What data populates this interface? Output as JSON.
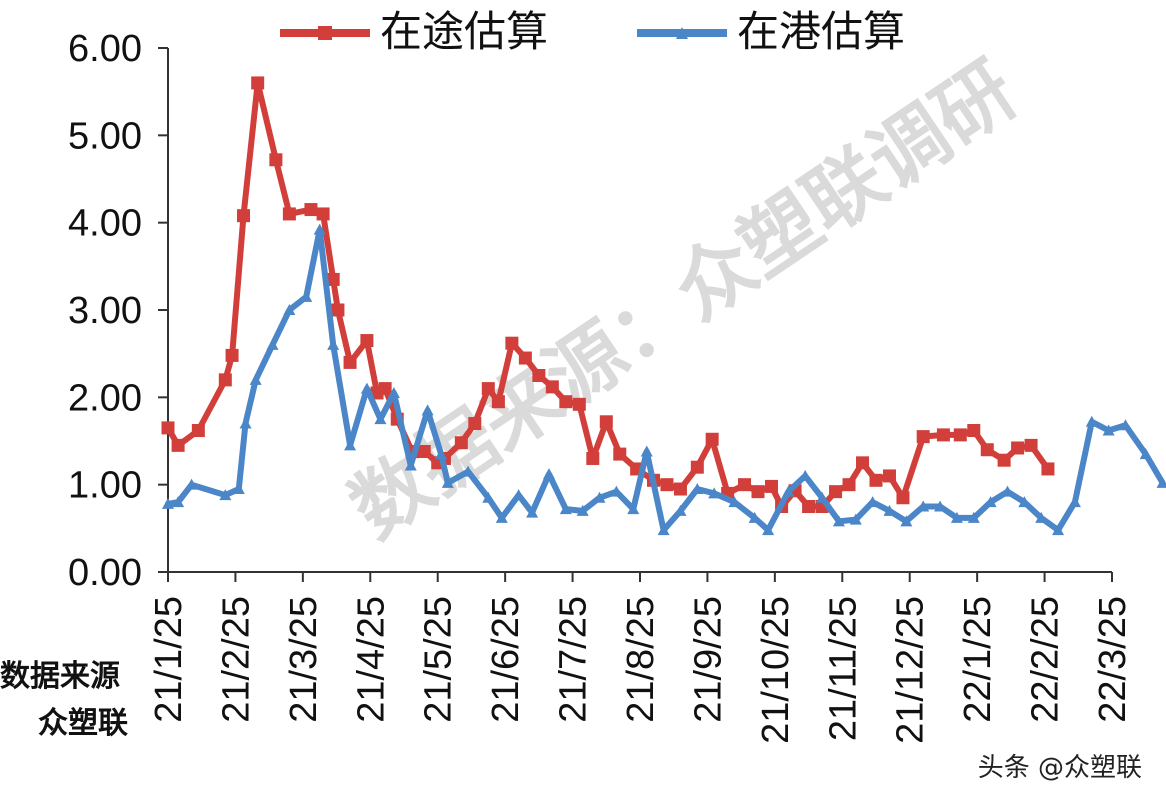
{
  "chart_data": {
    "type": "line",
    "title": "",
    "xlabel": "",
    "ylabel": "",
    "ylim": [
      0,
      6
    ],
    "yticks": [
      "0.00",
      "1.00",
      "2.00",
      "3.00",
      "4.00",
      "5.00",
      "6.00"
    ],
    "x_tick_labels": [
      "21/1/25",
      "21/2/25",
      "21/3/25",
      "21/4/25",
      "21/5/25",
      "21/6/25",
      "21/7/25",
      "21/8/25",
      "21/9/25",
      "21/10/25",
      "21/11/25",
      "21/12/25",
      "22/1/25",
      "22/2/25",
      "22/3/25"
    ],
    "legend_position": "top",
    "grid": false,
    "series": [
      {
        "name": "在途估算",
        "color": "#d23f3a",
        "marker": "square",
        "points": [
          [
            0.0,
            1.65
          ],
          [
            0.15,
            1.45
          ],
          [
            0.45,
            1.62
          ],
          [
            0.85,
            2.2
          ],
          [
            0.95,
            2.48
          ],
          [
            1.12,
            4.08
          ],
          [
            1.33,
            5.6
          ],
          [
            1.6,
            4.72
          ],
          [
            1.8,
            4.1
          ],
          [
            2.12,
            4.15
          ],
          [
            2.3,
            4.1
          ],
          [
            2.45,
            3.35
          ],
          [
            2.52,
            3.0
          ],
          [
            2.7,
            2.4
          ],
          [
            2.95,
            2.65
          ],
          [
            3.1,
            2.05
          ],
          [
            3.22,
            2.1
          ],
          [
            3.4,
            1.75
          ],
          [
            3.62,
            1.38
          ],
          [
            3.8,
            1.38
          ],
          [
            4.0,
            1.25
          ],
          [
            4.1,
            1.3
          ],
          [
            4.35,
            1.48
          ],
          [
            4.55,
            1.7
          ],
          [
            4.75,
            2.1
          ],
          [
            4.9,
            1.95
          ],
          [
            5.1,
            2.62
          ],
          [
            5.3,
            2.45
          ],
          [
            5.5,
            2.25
          ],
          [
            5.7,
            2.12
          ],
          [
            5.9,
            1.95
          ],
          [
            6.1,
            1.92
          ],
          [
            6.3,
            1.3
          ],
          [
            6.5,
            1.72
          ],
          [
            6.7,
            1.35
          ],
          [
            6.95,
            1.18
          ],
          [
            7.2,
            1.05
          ],
          [
            7.4,
            1.0
          ],
          [
            7.6,
            0.95
          ],
          [
            7.85,
            1.2
          ],
          [
            8.07,
            1.52
          ],
          [
            8.3,
            0.9
          ],
          [
            8.55,
            1.0
          ],
          [
            8.75,
            0.92
          ],
          [
            8.95,
            0.98
          ],
          [
            9.1,
            0.75
          ],
          [
            9.3,
            0.93
          ],
          [
            9.5,
            0.75
          ],
          [
            9.7,
            0.75
          ],
          [
            9.9,
            0.92
          ],
          [
            10.1,
            1.0
          ],
          [
            10.3,
            1.25
          ],
          [
            10.5,
            1.05
          ],
          [
            10.7,
            1.1
          ],
          [
            10.9,
            0.85
          ],
          [
            11.2,
            1.55
          ],
          [
            11.5,
            1.57
          ],
          [
            11.75,
            1.57
          ],
          [
            11.95,
            1.62
          ],
          [
            12.15,
            1.4
          ],
          [
            12.4,
            1.28
          ],
          [
            12.6,
            1.42
          ],
          [
            12.8,
            1.45
          ],
          [
            13.05,
            1.18
          ]
        ]
      },
      {
        "name": "在港估算",
        "color": "#4a86c8",
        "marker": "triangle",
        "points": [
          [
            0.0,
            0.78
          ],
          [
            0.15,
            0.8
          ],
          [
            0.35,
            1.0
          ],
          [
            0.85,
            0.88
          ],
          [
            1.05,
            0.95
          ],
          [
            1.15,
            1.7
          ],
          [
            1.3,
            2.2
          ],
          [
            1.55,
            2.6
          ],
          [
            1.8,
            3.0
          ],
          [
            2.05,
            3.15
          ],
          [
            2.25,
            3.92
          ],
          [
            2.45,
            2.6
          ],
          [
            2.7,
            1.45
          ],
          [
            2.95,
            2.1
          ],
          [
            3.15,
            1.75
          ],
          [
            3.35,
            2.05
          ],
          [
            3.6,
            1.22
          ],
          [
            3.85,
            1.85
          ],
          [
            4.05,
            1.35
          ],
          [
            4.15,
            1.02
          ],
          [
            4.45,
            1.15
          ],
          [
            4.75,
            0.85
          ],
          [
            4.95,
            0.62
          ],
          [
            5.2,
            0.88
          ],
          [
            5.4,
            0.68
          ],
          [
            5.65,
            1.12
          ],
          [
            5.9,
            0.72
          ],
          [
            6.15,
            0.7
          ],
          [
            6.4,
            0.85
          ],
          [
            6.65,
            0.92
          ],
          [
            6.9,
            0.72
          ],
          [
            7.1,
            1.38
          ],
          [
            7.35,
            0.48
          ],
          [
            7.6,
            0.7
          ],
          [
            7.85,
            0.95
          ],
          [
            8.1,
            0.9
          ],
          [
            8.4,
            0.8
          ],
          [
            8.7,
            0.62
          ],
          [
            8.9,
            0.48
          ],
          [
            9.2,
            0.92
          ],
          [
            9.45,
            1.1
          ],
          [
            9.7,
            0.85
          ],
          [
            9.95,
            0.58
          ],
          [
            10.2,
            0.6
          ],
          [
            10.45,
            0.8
          ],
          [
            10.7,
            0.7
          ],
          [
            10.95,
            0.58
          ],
          [
            11.2,
            0.75
          ],
          [
            11.45,
            0.75
          ],
          [
            11.7,
            0.62
          ],
          [
            11.95,
            0.62
          ],
          [
            12.2,
            0.8
          ],
          [
            12.45,
            0.92
          ],
          [
            12.7,
            0.8
          ],
          [
            12.95,
            0.62
          ],
          [
            13.2,
            0.48
          ],
          [
            13.45,
            0.8
          ],
          [
            13.7,
            1.72
          ],
          [
            13.95,
            1.62
          ],
          [
            14.2,
            1.68
          ],
          [
            14.5,
            1.35
          ],
          [
            14.75,
            1.02
          ]
        ]
      }
    ],
    "watermark": "数据来源：众塑联调研",
    "source_note": [
      "数据来源",
      "众塑联"
    ],
    "credit": "头条 @众塑联"
  }
}
